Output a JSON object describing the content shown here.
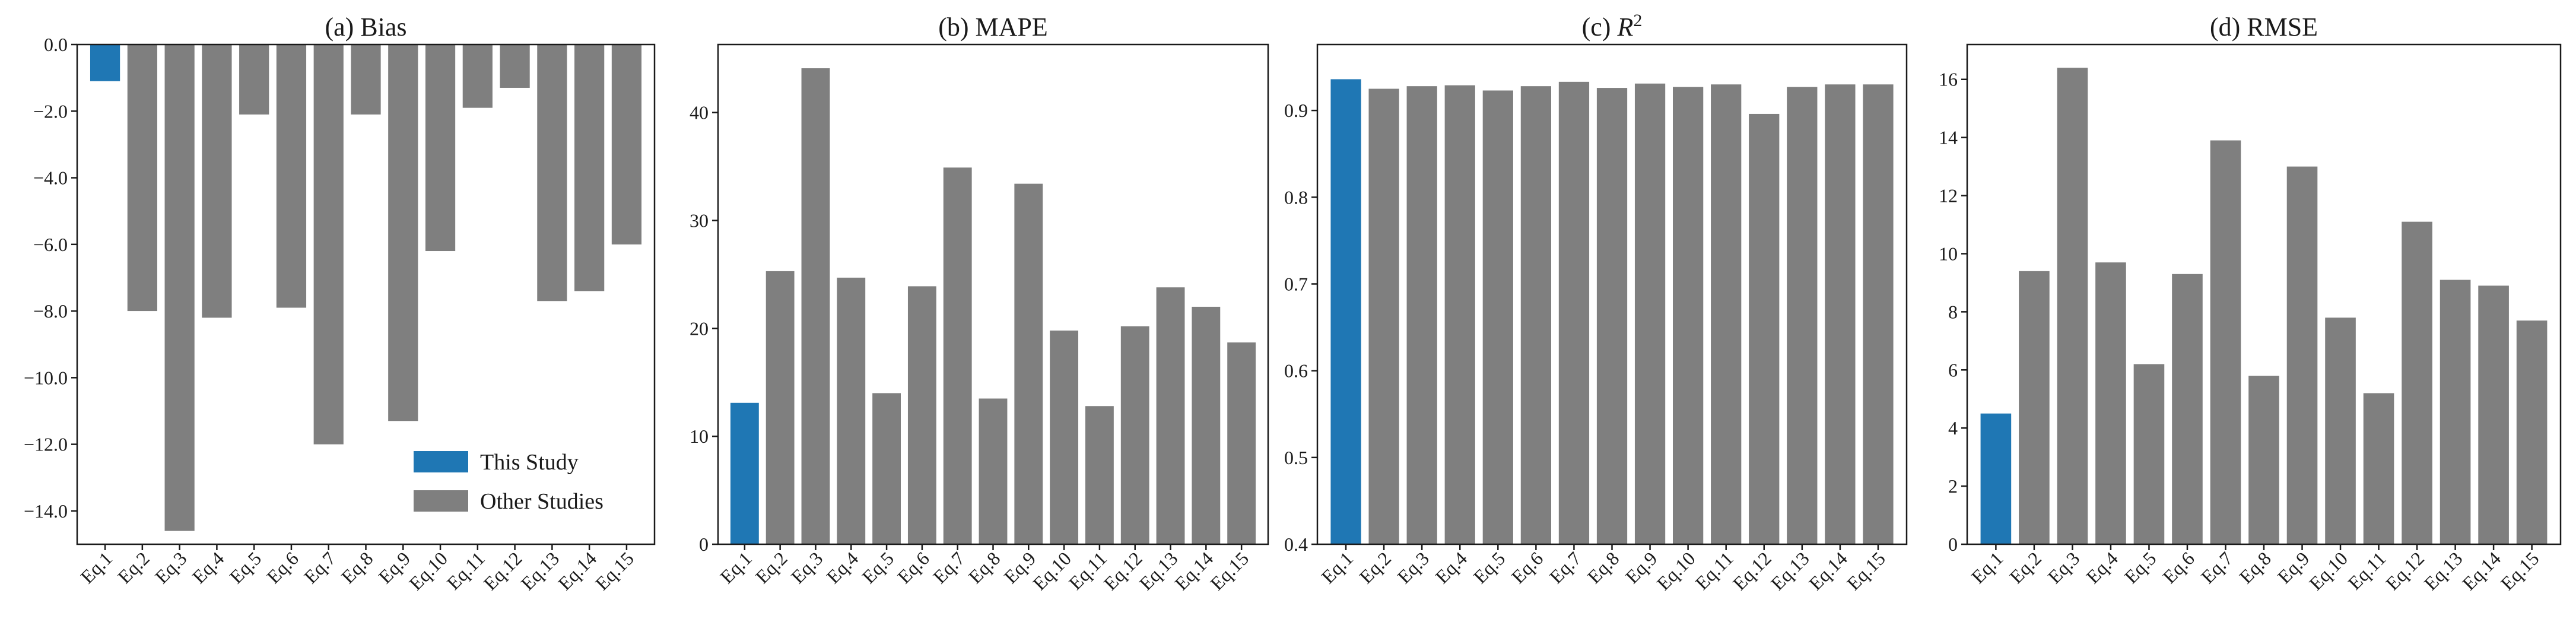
{
  "figure": {
    "bar_colors": {
      "this_study": "#1f77b4",
      "other_studies": "#7f7f7f"
    },
    "legend": {
      "items": [
        "This Study",
        "Other Studies"
      ],
      "placement": "lower-right of panel (a)"
    }
  },
  "chart_data": [
    {
      "type": "bar",
      "title": "(a) Bias",
      "categories": [
        "Eq.1",
        "Eq.2",
        "Eq.3",
        "Eq.4",
        "Eq.5",
        "Eq.6",
        "Eq.7",
        "Eq.8",
        "Eq.9",
        "Eq.10",
        "Eq.11",
        "Eq.12",
        "Eq.13",
        "Eq.14",
        "Eq.15"
      ],
      "values": [
        -1.1,
        -8.0,
        -14.6,
        -8.2,
        -2.1,
        -7.9,
        -12.0,
        -2.1,
        -11.3,
        -6.2,
        -1.9,
        -1.3,
        -7.7,
        -7.4,
        -6.0
      ],
      "ylim": [
        -15.0,
        0.0
      ],
      "yticks": [
        0.0,
        -2.0,
        -4.0,
        -6.0,
        -8.0,
        -10.0,
        -12.0,
        -14.0
      ],
      "ytick_labels": [
        "0.0",
        "−2.0",
        "−4.0",
        "−6.0",
        "−8.0",
        "−10.0",
        "−12.0",
        "−14.0"
      ],
      "legend": "lower right",
      "grid": false
    },
    {
      "type": "bar",
      "title": "(b) MAPE",
      "categories": [
        "Eq.1",
        "Eq.2",
        "Eq.3",
        "Eq.4",
        "Eq.5",
        "Eq.6",
        "Eq.7",
        "Eq.8",
        "Eq.9",
        "Eq.10",
        "Eq.11",
        "Eq.12",
        "Eq.13",
        "Eq.14",
        "Eq.15"
      ],
      "values": [
        13.1,
        25.3,
        44.1,
        24.7,
        14.0,
        23.9,
        34.9,
        13.5,
        33.4,
        19.8,
        12.8,
        20.2,
        23.8,
        22.0,
        18.7
      ],
      "ylim": [
        0,
        46.3
      ],
      "yticks": [
        0,
        10,
        20,
        30,
        40
      ],
      "ytick_labels": [
        "0",
        "10",
        "20",
        "30",
        "40"
      ],
      "grid": false
    },
    {
      "type": "bar",
      "title": "(c) R",
      "title_superscript": "2",
      "categories": [
        "Eq.1",
        "Eq.2",
        "Eq.3",
        "Eq.4",
        "Eq.5",
        "Eq.6",
        "Eq.7",
        "Eq.8",
        "Eq.9",
        "Eq.10",
        "Eq.11",
        "Eq.12",
        "Eq.13",
        "Eq.14",
        "Eq.15"
      ],
      "values": [
        0.936,
        0.925,
        0.928,
        0.929,
        0.923,
        0.928,
        0.933,
        0.926,
        0.931,
        0.927,
        0.93,
        0.896,
        0.927,
        0.93,
        0.93
      ],
      "ylim": [
        0.4,
        0.976
      ],
      "yticks": [
        0.4,
        0.5,
        0.6,
        0.7,
        0.8,
        0.9
      ],
      "ytick_labels": [
        "0.4",
        "0.5",
        "0.6",
        "0.7",
        "0.8",
        "0.9"
      ],
      "grid": false
    },
    {
      "type": "bar",
      "title": "(d) RMSE",
      "categories": [
        "Eq.1",
        "Eq.2",
        "Eq.3",
        "Eq.4",
        "Eq.5",
        "Eq.6",
        "Eq.7",
        "Eq.8",
        "Eq.9",
        "Eq.10",
        "Eq.11",
        "Eq.12",
        "Eq.13",
        "Eq.14",
        "Eq.15"
      ],
      "values": [
        4.5,
        9.4,
        16.4,
        9.7,
        6.2,
        9.3,
        13.9,
        5.8,
        13.0,
        7.8,
        5.2,
        11.1,
        9.1,
        8.9,
        7.7
      ],
      "ylim": [
        0,
        17.2
      ],
      "yticks": [
        0,
        2,
        4,
        6,
        8,
        10,
        12,
        14,
        16
      ],
      "ytick_labels": [
        "0",
        "2",
        "4",
        "6",
        "8",
        "10",
        "12",
        "14",
        "16"
      ],
      "grid": false
    }
  ]
}
